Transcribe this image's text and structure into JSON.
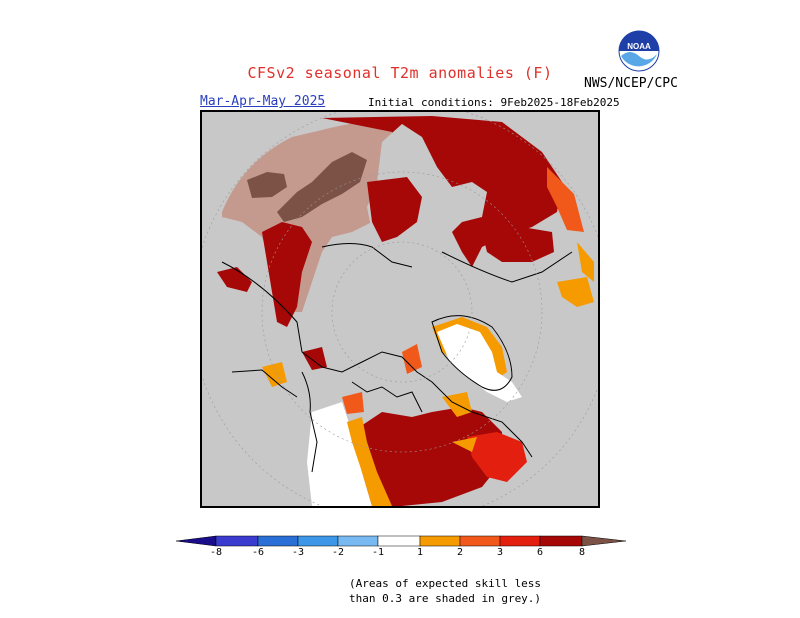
{
  "title": "CFSv2 seasonal T2m anomalies (F)",
  "agency": "NWS/NCEP/CPC",
  "logo_text": "NOAA",
  "season": "Mar-Apr-May 2025",
  "initial_conditions": "Initial conditions: 9Feb2025-18Feb2025",
  "colorbar": {
    "labels": [
      "-8",
      "-6",
      "-3",
      "-2",
      "-1",
      "1",
      "2",
      "3",
      "6",
      "8"
    ],
    "colors": [
      "#1a0d8c",
      "#3b3bcf",
      "#2a6fd6",
      "#3d97e8",
      "#78b9f2",
      "#ffffff",
      "#f59b00",
      "#f0591a",
      "#e3200f",
      "#a60808",
      "#c49a8f",
      "#7b5245"
    ]
  },
  "note_line1": "(Areas of expected skill less",
  "note_line2": "than 0.3 are shaded in grey.)",
  "map_colors": {
    "grey": "#c8c8c8",
    "white": "#ffffff",
    "orange": "#f59b00",
    "redorange": "#f0591a",
    "red": "#e3200f",
    "darkred": "#a60808",
    "lightbrown": "#c49a8f",
    "darkbrown": "#7b5245"
  }
}
